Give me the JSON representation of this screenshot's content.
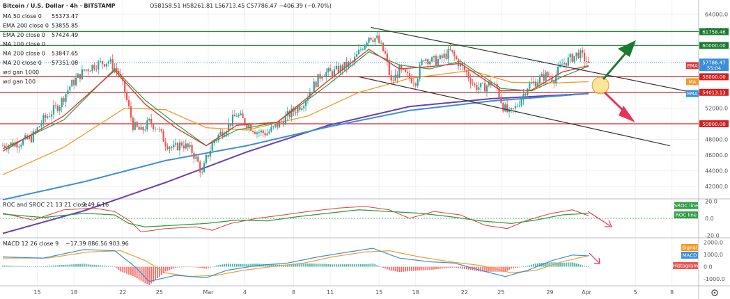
{
  "header": {
    "symbol_title": "Bitcoin / U.S. Dollar · 4h · BITSTAMP",
    "ohlc": "O58158.51  H58261.81  L56713.45  C57786.47  −406.39 (−0.70%)"
  },
  "legend": [
    {
      "label": "MA 50 close 0",
      "value": "55373.47",
      "color": "#f29b2c"
    },
    {
      "label": "EMA 200 close 0",
      "value": "53855.85",
      "color": "#3a8fd9"
    },
    {
      "label": "EMA 20 close 0",
      "value": "57424.49",
      "color": "#e03a3a"
    },
    {
      "label": "MA 100 close 0",
      "value": "",
      "color": "#aaaaaa"
    },
    {
      "label": "MA 200 close 0",
      "value": "53847.65",
      "color": "#6a3fb0"
    },
    {
      "label": "MA 20 close 0",
      "value": "57351.08",
      "color": "#2f9e44"
    },
    {
      "label": "wd gan 1000",
      "value": "",
      "color": "#aaaaaa"
    },
    {
      "label": "wd gan 100",
      "value": "",
      "color": "#aaaaaa"
    }
  ],
  "badges": {
    "price": "57786.47",
    "countdown": "55:04",
    "ema": "EMA",
    "ma": "MA",
    "l61758": "61758.46",
    "l60000": "60000.00",
    "l56000": "56000.00",
    "l54013": "54013.13",
    "l50000": "50000.00",
    "sroc": "SROC line",
    "roc": "ROC line",
    "signal": "Signal",
    "macd": "MACD",
    "histogram": "Histogram"
  },
  "colors": {
    "up": "#26a69a",
    "down": "#ef5350",
    "level_green": "#1b7a2f",
    "level_red": "#d62020",
    "ema20": "#e03a3a",
    "ma20": "#2f9e44",
    "ma50": "#f29b2c",
    "ema200": "#3a8fd9",
    "ma200": "#6a3fb0",
    "channel": "#333333",
    "arrow_up": "#1b7a2f",
    "arrow_down": "#e8325a",
    "roc_line": "#e03a3a",
    "sroc_line": "#2f9e44",
    "macd_line": "#3a8fd9",
    "signal_line": "#f29b2c",
    "ema200_badge": "#3a8fd9",
    "ema20_badge": "#e03a3a",
    "ma_badge": "#f29b2c"
  },
  "chart_data": [
    {
      "type": "candlestick",
      "title": "Bitcoin / U.S. Dollar · 4h · BITSTAMP",
      "ylim": [
        40500,
        65800
      ],
      "y_ticks": [
        42000,
        44000,
        46000,
        48000,
        50000,
        52000,
        54000,
        56000,
        58000,
        60000,
        62000,
        64000
      ],
      "x_ticks": [
        {
          "label": "15",
          "i": 17
        },
        {
          "label": "18",
          "i": 35
        },
        {
          "label": "22",
          "i": 59
        },
        {
          "label": "25",
          "i": 77
        },
        {
          "label": "Mar",
          "i": 101
        },
        {
          "label": "4",
          "i": 119
        },
        {
          "label": "8",
          "i": 143
        },
        {
          "label": "11",
          "i": 161
        },
        {
          "label": "15",
          "i": 185
        },
        {
          "label": "18",
          "i": 203
        },
        {
          "label": "22",
          "i": 227
        },
        {
          "label": "25",
          "i": 245
        },
        {
          "label": "29",
          "i": 269
        },
        {
          "label": "Apr",
          "i": 287
        },
        {
          "label": "5",
          "i": 311
        },
        {
          "label": "8",
          "i": 329
        }
      ],
      "price_path": [
        [
          0,
          47200
        ],
        [
          8,
          47600
        ],
        [
          14,
          48200
        ],
        [
          20,
          50500
        ],
        [
          28,
          52500
        ],
        [
          33,
          54800
        ],
        [
          40,
          56800
        ],
        [
          45,
          57500
        ],
        [
          52,
          58000
        ],
        [
          57,
          56500
        ],
        [
          60,
          54000
        ],
        [
          64,
          49800
        ],
        [
          68,
          49000
        ],
        [
          72,
          50200
        ],
        [
          76,
          49500
        ],
        [
          80,
          47600
        ],
        [
          84,
          46800
        ],
        [
          88,
          47500
        ],
        [
          93,
          46500
        ],
        [
          96,
          45000
        ],
        [
          98,
          43500
        ],
        [
          100,
          45500
        ],
        [
          104,
          48000
        ],
        [
          110,
          49500
        ],
        [
          115,
          51200
        ],
        [
          120,
          50000
        ],
        [
          125,
          49000
        ],
        [
          130,
          48800
        ],
        [
          135,
          49800
        ],
        [
          140,
          51000
        ],
        [
          147,
          52500
        ],
        [
          152,
          54500
        ],
        [
          157,
          56500
        ],
        [
          162,
          56500
        ],
        [
          167,
          57200
        ],
        [
          172,
          57800
        ],
        [
          176,
          59500
        ],
        [
          180,
          61200
        ],
        [
          184,
          60800
        ],
        [
          188,
          58800
        ],
        [
          191,
          55200
        ],
        [
          195,
          56800
        ],
        [
          199,
          56000
        ],
        [
          203,
          55500
        ],
        [
          207,
          58500
        ],
        [
          211,
          58000
        ],
        [
          215,
          58200
        ],
        [
          220,
          59200
        ],
        [
          224,
          57800
        ],
        [
          228,
          56500
        ],
        [
          232,
          54800
        ],
        [
          236,
          54600
        ],
        [
          240,
          55200
        ],
        [
          243,
          54500
        ],
        [
          246,
          52200
        ],
        [
          249,
          51200
        ],
        [
          252,
          52000
        ],
        [
          255,
          53300
        ],
        [
          258,
          54800
        ],
        [
          263,
          55500
        ],
        [
          267,
          56200
        ],
        [
          271,
          55800
        ],
        [
          275,
          57600
        ],
        [
          279,
          58300
        ],
        [
          283,
          59000
        ],
        [
          286,
          58300
        ],
        [
          288,
          57786
        ]
      ],
      "indicators": {
        "ema200": [
          [
            0,
            40300
          ],
          [
            40,
            42600
          ],
          [
            80,
            45300
          ],
          [
            120,
            47200
          ],
          [
            160,
            49600
          ],
          [
            200,
            51700
          ],
          [
            240,
            52900
          ],
          [
            288,
            53856
          ]
        ],
        "ma200": [
          [
            0,
            36000
          ],
          [
            40,
            38900
          ],
          [
            80,
            42500
          ],
          [
            120,
            46400
          ],
          [
            160,
            49800
          ],
          [
            200,
            52200
          ],
          [
            240,
            53200
          ],
          [
            288,
            53848
          ]
        ],
        "ma50": [
          [
            0,
            43500
          ],
          [
            30,
            47000
          ],
          [
            60,
            52000
          ],
          [
            80,
            51800
          ],
          [
            100,
            49500
          ],
          [
            120,
            49200
          ],
          [
            150,
            51000
          ],
          [
            175,
            54000
          ],
          [
            200,
            55800
          ],
          [
            230,
            56800
          ],
          [
            250,
            55300
          ],
          [
            270,
            55200
          ],
          [
            288,
            55373
          ]
        ],
        "ema20": [
          [
            0,
            46500
          ],
          [
            30,
            51000
          ],
          [
            55,
            56800
          ],
          [
            70,
            52500
          ],
          [
            85,
            49500
          ],
          [
            100,
            47200
          ],
          [
            115,
            49800
          ],
          [
            135,
            50200
          ],
          [
            160,
            55500
          ],
          [
            180,
            59500
          ],
          [
            195,
            57000
          ],
          [
            210,
            57300
          ],
          [
            225,
            57700
          ],
          [
            245,
            54200
          ],
          [
            260,
            54300
          ],
          [
            275,
            56600
          ],
          [
            288,
            57424
          ]
        ],
        "ma20": [
          [
            0,
            46800
          ],
          [
            30,
            50500
          ],
          [
            55,
            57000
          ],
          [
            70,
            53000
          ],
          [
            85,
            50000
          ],
          [
            100,
            47200
          ],
          [
            115,
            49200
          ],
          [
            135,
            50200
          ],
          [
            160,
            55000
          ],
          [
            180,
            59200
          ],
          [
            195,
            57500
          ],
          [
            210,
            57000
          ],
          [
            225,
            58000
          ],
          [
            245,
            54500
          ],
          [
            260,
            54200
          ],
          [
            275,
            56000
          ],
          [
            288,
            57351
          ]
        ]
      },
      "levels": [
        {
          "value": 61758.46,
          "color": "level_green"
        },
        {
          "value": 60000,
          "color": "level_green"
        },
        {
          "value": 56000,
          "color": "level_red"
        },
        {
          "value": 54013.13,
          "color": "level_red"
        },
        {
          "value": 50000,
          "color": "level_red"
        }
      ],
      "channel": [
        {
          "from": [
            181,
            62300
          ],
          "to": [
            345,
            53700
          ]
        },
        {
          "from": [
            175,
            56000
          ],
          "to": [
            328,
            47200
          ]
        }
      ],
      "current_price": 57786.47
    },
    {
      "type": "line",
      "title": "ROC and SROC 21 13 21 close",
      "values_label": "3.49  6.16",
      "ylim": [
        -22,
        22
      ],
      "y_ticks": [
        20,
        0,
        -20
      ],
      "series": [
        {
          "name": "SROC line",
          "values": [
            [
              0,
              5
            ],
            [
              20,
              1
            ],
            [
              40,
              6
            ],
            [
              55,
              4
            ],
            [
              62,
              -6
            ],
            [
              70,
              -10
            ],
            [
              85,
              -8
            ],
            [
              100,
              -6
            ],
            [
              115,
              -2
            ],
            [
              130,
              -3
            ],
            [
              145,
              2
            ],
            [
              160,
              6
            ],
            [
              175,
              10
            ],
            [
              190,
              8
            ],
            [
              205,
              6
            ],
            [
              220,
              2
            ],
            [
              235,
              -3
            ],
            [
              250,
              -6
            ],
            [
              262,
              -2
            ],
            [
              275,
              4
            ],
            [
              288,
              6
            ]
          ]
        },
        {
          "name": "ROC line",
          "values": [
            [
              0,
              6
            ],
            [
              15,
              -2
            ],
            [
              30,
              10
            ],
            [
              45,
              12
            ],
            [
              55,
              8
            ],
            [
              63,
              -4
            ],
            [
              68,
              -16
            ],
            [
              80,
              -12
            ],
            [
              95,
              -10
            ],
            [
              103,
              -14
            ],
            [
              112,
              -6
            ],
            [
              125,
              0
            ],
            [
              138,
              4
            ],
            [
              150,
              8
            ],
            [
              165,
              12
            ],
            [
              178,
              14
            ],
            [
              190,
              10
            ],
            [
              200,
              0
            ],
            [
              212,
              8
            ],
            [
              225,
              4
            ],
            [
              237,
              -8
            ],
            [
              248,
              -12
            ],
            [
              258,
              -2
            ],
            [
              270,
              6
            ],
            [
              280,
              10
            ],
            [
              288,
              3
            ]
          ]
        }
      ]
    },
    {
      "type": "line",
      "title": "MACD 12 26 close 9",
      "values_label": "−17.39  886.56  903.96",
      "ylim": [
        -1500,
        2300
      ],
      "y_ticks": [
        2000,
        1000,
        0,
        -1000
      ],
      "series": [
        {
          "name": "MACD",
          "values": [
            [
              0,
              800
            ],
            [
              20,
              700
            ],
            [
              40,
              1400
            ],
            [
              55,
              1300
            ],
            [
              65,
              0
            ],
            [
              72,
              -1200
            ],
            [
              85,
              -700
            ],
            [
              100,
              -900
            ],
            [
              110,
              -300
            ],
            [
              125,
              100
            ],
            [
              140,
              300
            ],
            [
              155,
              800
            ],
            [
              170,
              1200
            ],
            [
              182,
              1500
            ],
            [
              195,
              700
            ],
            [
              210,
              400
            ],
            [
              222,
              300
            ],
            [
              235,
              -300
            ],
            [
              247,
              -800
            ],
            [
              258,
              -300
            ],
            [
              270,
              500
            ],
            [
              280,
              950
            ],
            [
              288,
              886
            ]
          ]
        },
        {
          "name": "Signal",
          "values": [
            [
              0,
              700
            ],
            [
              22,
              700
            ],
            [
              42,
              1200
            ],
            [
              58,
              1300
            ],
            [
              70,
              500
            ],
            [
              80,
              -500
            ],
            [
              92,
              -800
            ],
            [
              105,
              -700
            ],
            [
              118,
              -300
            ],
            [
              132,
              0
            ],
            [
              148,
              300
            ],
            [
              162,
              800
            ],
            [
              178,
              1200
            ],
            [
              190,
              1300
            ],
            [
              205,
              800
            ],
            [
              220,
              400
            ],
            [
              235,
              100
            ],
            [
              250,
              -500
            ],
            [
              262,
              -300
            ],
            [
              275,
              400
            ],
            [
              288,
              904
            ]
          ]
        }
      ]
    }
  ]
}
